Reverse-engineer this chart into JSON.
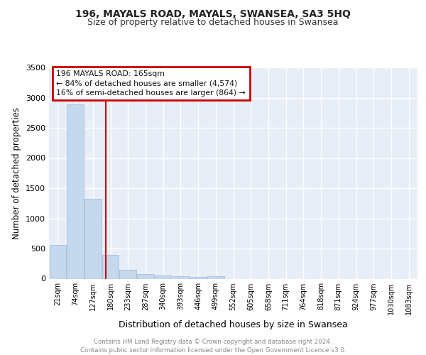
{
  "title": "196, MAYALS ROAD, MAYALS, SWANSEA, SA3 5HQ",
  "subtitle": "Size of property relative to detached houses in Swansea",
  "xlabel": "Distribution of detached houses by size in Swansea",
  "ylabel": "Number of detached properties",
  "categories": [
    "21sqm",
    "74sqm",
    "127sqm",
    "180sqm",
    "233sqm",
    "287sqm",
    "340sqm",
    "393sqm",
    "446sqm",
    "499sqm",
    "552sqm",
    "605sqm",
    "658sqm",
    "711sqm",
    "764sqm",
    "818sqm",
    "871sqm",
    "924sqm",
    "977sqm",
    "1030sqm",
    "1083sqm"
  ],
  "values": [
    560,
    2890,
    1320,
    400,
    150,
    80,
    55,
    40,
    35,
    40,
    0,
    0,
    0,
    0,
    0,
    0,
    0,
    0,
    0,
    0,
    0
  ],
  "bar_color": "#c5d9ee",
  "bar_edge_color": "#9ab8d4",
  "vline_color": "#cc0000",
  "annotation_lines": [
    "196 MAYALS ROAD: 165sqm",
    "← 84% of detached houses are smaller (4,574)",
    "16% of semi-detached houses are larger (864) →"
  ],
  "annotation_box_color": "#cc0000",
  "background_color": "#e8eef8",
  "grid_color": "#ffffff",
  "ylim": [
    0,
    3500
  ],
  "yticks": [
    0,
    500,
    1000,
    1500,
    2000,
    2500,
    3000,
    3500
  ],
  "footer": "Contains HM Land Registry data © Crown copyright and database right 2024.\nContains public sector information licensed under the Open Government Licence v3.0.",
  "title_fontsize": 10,
  "subtitle_fontsize": 9,
  "xlabel_fontsize": 9,
  "ylabel_fontsize": 8.5
}
